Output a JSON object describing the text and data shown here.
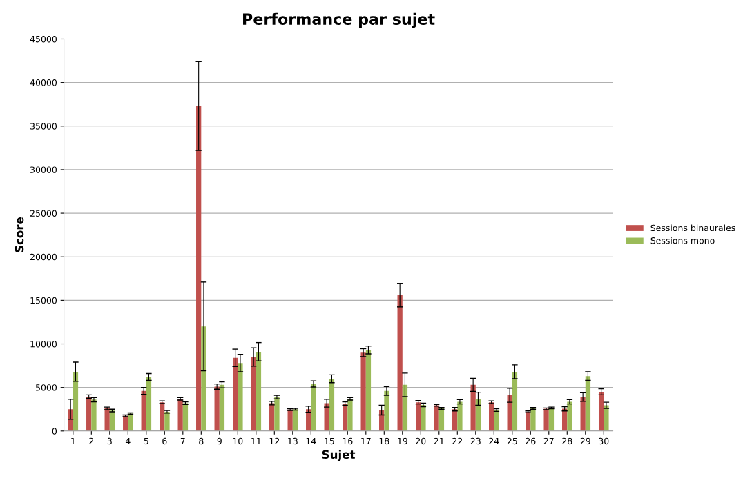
{
  "chart_data": {
    "type": "bar",
    "title": "Performance par sujet",
    "xlabel": "Sujet",
    "ylabel": "Score",
    "categories": [
      "1",
      "2",
      "3",
      "4",
      "5",
      "6",
      "7",
      "8",
      "9",
      "10",
      "11",
      "12",
      "13",
      "14",
      "15",
      "16",
      "17",
      "18",
      "19",
      "20",
      "21",
      "22",
      "23",
      "24",
      "25",
      "26",
      "27",
      "28",
      "29",
      "30"
    ],
    "series": [
      {
        "name": "Sessions binaurales",
        "color": "#c0504d",
        "values": [
          2500,
          3950,
          2600,
          1750,
          4600,
          3300,
          3700,
          37300,
          5100,
          8400,
          8500,
          3200,
          2450,
          2500,
          3200,
          3150,
          9000,
          2400,
          15600,
          3300,
          2950,
          2500,
          5300,
          3300,
          4100,
          2200,
          2550,
          2550,
          3900,
          4500
        ],
        "errors": [
          1150,
          200,
          150,
          100,
          400,
          150,
          150,
          5100,
          300,
          1000,
          1050,
          200,
          100,
          350,
          450,
          200,
          450,
          550,
          1350,
          200,
          100,
          200,
          750,
          150,
          800,
          100,
          100,
          250,
          500,
          350
        ]
      },
      {
        "name": "Sessions mono",
        "color": "#9bbb59",
        "values": [
          6800,
          3600,
          2350,
          2000,
          6200,
          2200,
          3200,
          12000,
          5300,
          7800,
          9100,
          3900,
          2500,
          5400,
          6000,
          3700,
          9300,
          4600,
          5300,
          3000,
          2600,
          3350,
          3700,
          2400,
          6800,
          2600,
          2650,
          3350,
          6300,
          2950
        ],
        "errors": [
          1100,
          250,
          150,
          80,
          400,
          150,
          150,
          5100,
          350,
          1000,
          1050,
          200,
          100,
          350,
          450,
          150,
          450,
          500,
          1350,
          200,
          100,
          250,
          750,
          150,
          800,
          100,
          100,
          250,
          500,
          350
        ]
      }
    ],
    "ylim": [
      0,
      45000
    ],
    "yticks": [
      0,
      5000,
      10000,
      15000,
      20000,
      25000,
      30000,
      35000,
      40000,
      45000
    ],
    "grid": "y",
    "legend": "right"
  }
}
